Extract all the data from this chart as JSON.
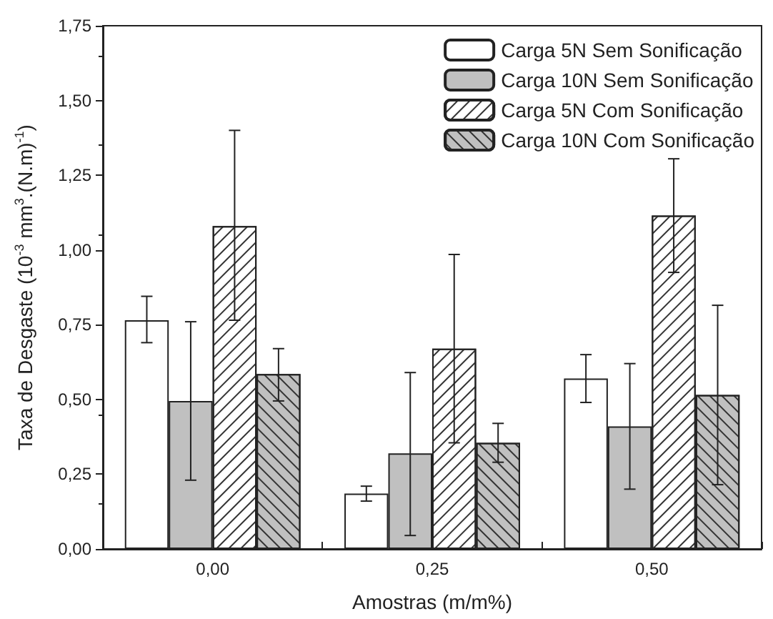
{
  "chart_data": {
    "type": "bar",
    "xlabel": "Amostras (m/m%)",
    "ylabel": "Taxa de Desgaste (10$^{-3}$ mm$^{3}$.(N.m)$^{-1}$)",
    "categories": [
      "0,00",
      "0,25",
      "0,50"
    ],
    "series": [
      {
        "name": "Carga 5N Sem Sonificação",
        "color": "#ffffff",
        "values": [
          0.765,
          0.185,
          0.57
        ],
        "errors": [
          [
            0.69,
            0.845
          ],
          [
            0.16,
            0.21
          ],
          [
            0.49,
            0.65
          ]
        ]
      },
      {
        "name": "Carga 10N Sem Sonificação",
        "color": "#c0c0c0",
        "values": [
          0.495,
          0.32,
          0.41
        ],
        "errors": [
          [
            0.23,
            0.76
          ],
          [
            0.045,
            0.59
          ],
          [
            0.2,
            0.62
          ]
        ]
      },
      {
        "name": "Carga 5N Com Sonificação",
        "color": "#ffffff",
        "values": [
          1.08,
          0.67,
          1.115
        ],
        "errors": [
          [
            0.765,
            1.4
          ],
          [
            0.355,
            0.985
          ],
          [
            0.925,
            1.305
          ]
        ]
      },
      {
        "name": "Carga 10N Com Sonificação",
        "color": "#c0c0c0",
        "values": [
          0.585,
          0.355,
          0.515
        ],
        "errors": [
          [
            0.495,
            0.67
          ],
          [
            0.29,
            0.42
          ],
          [
            0.215,
            0.815
          ]
        ]
      }
    ],
    "ylim": [
      0,
      1.75
    ],
    "yticks": [
      {
        "value": 0,
        "label": "0,00"
      },
      {
        "value": 0.25,
        "label": "0,25"
      },
      {
        "value": 0.5,
        "label": "0,50"
      },
      {
        "value": 0.75,
        "label": "0,75"
      },
      {
        "value": 1,
        "label": "1,00"
      },
      {
        "value": 1.25,
        "label": "1,25"
      },
      {
        "value": 1.5,
        "label": "1,50"
      },
      {
        "value": 1.75,
        "label": "1,75"
      }
    ],
    "grid": false,
    "legend": "top right"
  }
}
